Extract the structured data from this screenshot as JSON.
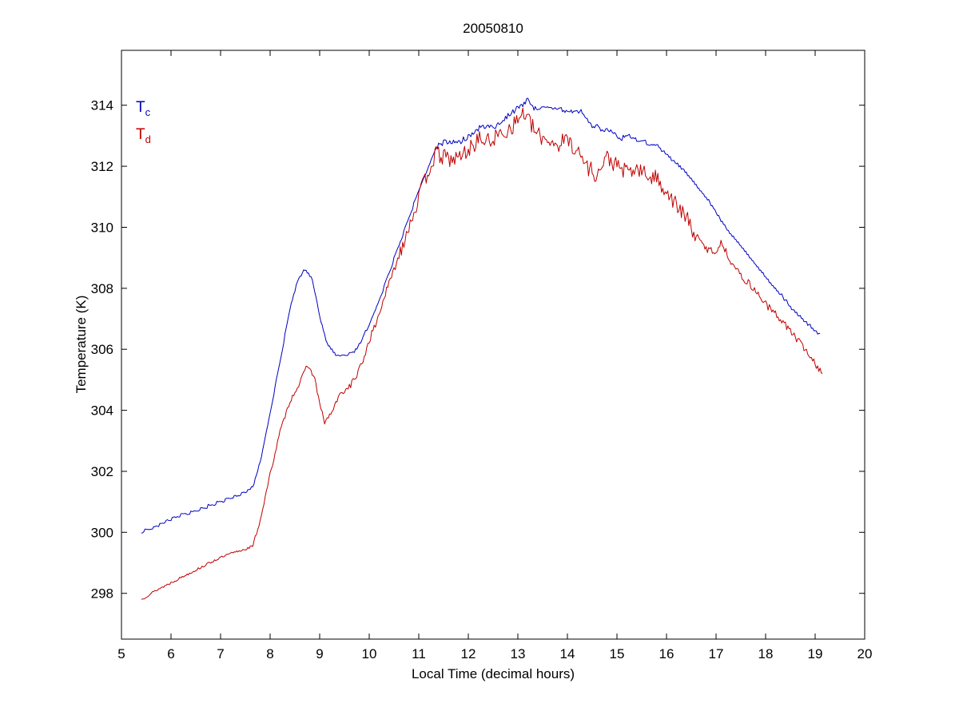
{
  "chart_data": {
    "type": "line",
    "title": "20050810",
    "xlabel": "Local Time (decimal hours)",
    "ylabel": "Temperature (K)",
    "xlim": [
      5,
      20
    ],
    "ylim": [
      296.5,
      315.8
    ],
    "xticks": [
      5,
      6,
      7,
      8,
      9,
      10,
      11,
      12,
      13,
      14,
      15,
      16,
      17,
      18,
      19,
      20
    ],
    "yticks": [
      298,
      300,
      302,
      304,
      306,
      308,
      310,
      312,
      314
    ],
    "grid": false,
    "legend_position": "top-left-inside",
    "axis_color": "#000000",
    "legend": [
      {
        "label": "T",
        "sub": "c",
        "color": "#0000bf"
      },
      {
        "label": "T",
        "sub": "d",
        "color": "#bf0000"
      }
    ],
    "sample_step": 0.025,
    "series": [
      {
        "name": "Tc",
        "color": "#0000bf",
        "seed": 7,
        "quantize": 0.1,
        "noise": [
          {
            "from": 5.4,
            "to": 11.4,
            "amp": 0.02
          },
          {
            "from": 11.4,
            "to": 15.6,
            "amp": 0.07
          },
          {
            "from": 15.6,
            "to": 19.1,
            "amp": 0.02
          }
        ],
        "points": [
          [
            5.4,
            300.0
          ],
          [
            5.7,
            300.2
          ],
          [
            6.0,
            300.45
          ],
          [
            6.3,
            300.6
          ],
          [
            6.6,
            300.75
          ],
          [
            6.9,
            300.95
          ],
          [
            7.2,
            301.1
          ],
          [
            7.5,
            301.3
          ],
          [
            7.65,
            301.5
          ],
          [
            7.8,
            302.3
          ],
          [
            8.0,
            303.9
          ],
          [
            8.2,
            305.6
          ],
          [
            8.4,
            307.3
          ],
          [
            8.55,
            308.2
          ],
          [
            8.7,
            308.65
          ],
          [
            8.85,
            308.35
          ],
          [
            9.0,
            307.1
          ],
          [
            9.15,
            306.2
          ],
          [
            9.3,
            305.85
          ],
          [
            9.5,
            305.8
          ],
          [
            9.7,
            305.9
          ],
          [
            9.85,
            306.3
          ],
          [
            10.0,
            306.8
          ],
          [
            10.2,
            307.6
          ],
          [
            10.4,
            308.5
          ],
          [
            10.6,
            309.4
          ],
          [
            10.8,
            310.3
          ],
          [
            11.0,
            311.2
          ],
          [
            11.2,
            312.0
          ],
          [
            11.35,
            312.6
          ],
          [
            11.5,
            312.75
          ],
          [
            11.7,
            312.8
          ],
          [
            11.9,
            312.85
          ],
          [
            12.1,
            313.1
          ],
          [
            12.3,
            313.35
          ],
          [
            12.5,
            313.25
          ],
          [
            12.7,
            313.5
          ],
          [
            12.9,
            313.8
          ],
          [
            13.05,
            313.95
          ],
          [
            13.2,
            314.2
          ],
          [
            13.35,
            313.9
          ],
          [
            13.5,
            313.85
          ],
          [
            13.7,
            313.9
          ],
          [
            13.9,
            313.85
          ],
          [
            14.1,
            313.8
          ],
          [
            14.3,
            313.75
          ],
          [
            14.5,
            313.35
          ],
          [
            14.7,
            313.2
          ],
          [
            14.9,
            313.15
          ],
          [
            15.05,
            312.9
          ],
          [
            15.2,
            313.0
          ],
          [
            15.4,
            312.85
          ],
          [
            15.6,
            312.75
          ],
          [
            15.8,
            312.7
          ],
          [
            16.0,
            312.4
          ],
          [
            16.2,
            312.1
          ],
          [
            16.4,
            311.8
          ],
          [
            16.6,
            311.4
          ],
          [
            16.8,
            311.0
          ],
          [
            17.0,
            310.5
          ],
          [
            17.2,
            310.0
          ],
          [
            17.4,
            309.6
          ],
          [
            17.6,
            309.2
          ],
          [
            17.8,
            308.8
          ],
          [
            18.0,
            308.4
          ],
          [
            18.2,
            308.0
          ],
          [
            18.4,
            307.6
          ],
          [
            18.6,
            307.2
          ],
          [
            18.8,
            306.9
          ],
          [
            19.0,
            306.6
          ],
          [
            19.1,
            306.45
          ]
        ]
      },
      {
        "name": "Td",
        "color": "#bf0000",
        "seed": 13,
        "quantize": 0,
        "noise": [
          {
            "from": 5.4,
            "to": 7.7,
            "amp": 0.04
          },
          {
            "from": 7.7,
            "to": 9.6,
            "amp": 0.07
          },
          {
            "from": 9.6,
            "to": 10.6,
            "amp": 0.12
          },
          {
            "from": 10.6,
            "to": 16.6,
            "amp": 0.28
          },
          {
            "from": 16.6,
            "to": 19.15,
            "amp": 0.12
          }
        ],
        "points": [
          [
            5.4,
            297.8
          ],
          [
            5.7,
            298.1
          ],
          [
            6.0,
            298.35
          ],
          [
            6.3,
            298.6
          ],
          [
            6.6,
            298.85
          ],
          [
            6.9,
            299.1
          ],
          [
            7.2,
            299.3
          ],
          [
            7.5,
            299.45
          ],
          [
            7.65,
            299.55
          ],
          [
            7.8,
            300.4
          ],
          [
            8.0,
            301.9
          ],
          [
            8.2,
            303.3
          ],
          [
            8.4,
            304.3
          ],
          [
            8.6,
            304.9
          ],
          [
            8.75,
            305.5
          ],
          [
            8.9,
            305.05
          ],
          [
            9.0,
            304.2
          ],
          [
            9.1,
            303.6
          ],
          [
            9.25,
            303.95
          ],
          [
            9.4,
            304.5
          ],
          [
            9.55,
            304.7
          ],
          [
            9.7,
            305.0
          ],
          [
            9.85,
            305.5
          ],
          [
            10.0,
            306.3
          ],
          [
            10.15,
            306.9
          ],
          [
            10.3,
            307.7
          ],
          [
            10.5,
            308.6
          ],
          [
            10.7,
            309.6
          ],
          [
            10.9,
            310.5
          ],
          [
            11.05,
            311.2
          ],
          [
            11.2,
            311.9
          ],
          [
            11.35,
            312.4
          ],
          [
            11.5,
            312.3
          ],
          [
            11.7,
            312.2
          ],
          [
            11.9,
            312.4
          ],
          [
            12.05,
            312.6
          ],
          [
            12.2,
            312.9
          ],
          [
            12.4,
            312.8
          ],
          [
            12.6,
            313.0
          ],
          [
            12.8,
            313.2
          ],
          [
            13.0,
            313.5
          ],
          [
            13.1,
            313.8
          ],
          [
            13.25,
            313.4
          ],
          [
            13.4,
            313.0
          ],
          [
            13.6,
            312.9
          ],
          [
            13.8,
            312.7
          ],
          [
            14.0,
            312.9
          ],
          [
            14.2,
            312.5
          ],
          [
            14.4,
            312.0
          ],
          [
            14.6,
            311.7
          ],
          [
            14.8,
            312.3
          ],
          [
            15.0,
            312.0
          ],
          [
            15.2,
            311.8
          ],
          [
            15.4,
            311.9
          ],
          [
            15.6,
            311.7
          ],
          [
            15.8,
            311.6
          ],
          [
            16.0,
            311.2
          ],
          [
            16.2,
            310.7
          ],
          [
            16.4,
            310.3
          ],
          [
            16.6,
            309.7
          ],
          [
            16.8,
            309.3
          ],
          [
            17.0,
            309.2
          ],
          [
            17.1,
            309.5
          ],
          [
            17.3,
            308.9
          ],
          [
            17.5,
            308.4
          ],
          [
            17.7,
            308.1
          ],
          [
            17.9,
            307.7
          ],
          [
            18.1,
            307.3
          ],
          [
            18.3,
            307.0
          ],
          [
            18.5,
            306.6
          ],
          [
            18.7,
            306.2
          ],
          [
            18.9,
            305.8
          ],
          [
            19.0,
            305.5
          ],
          [
            19.15,
            305.25
          ]
        ]
      }
    ]
  }
}
